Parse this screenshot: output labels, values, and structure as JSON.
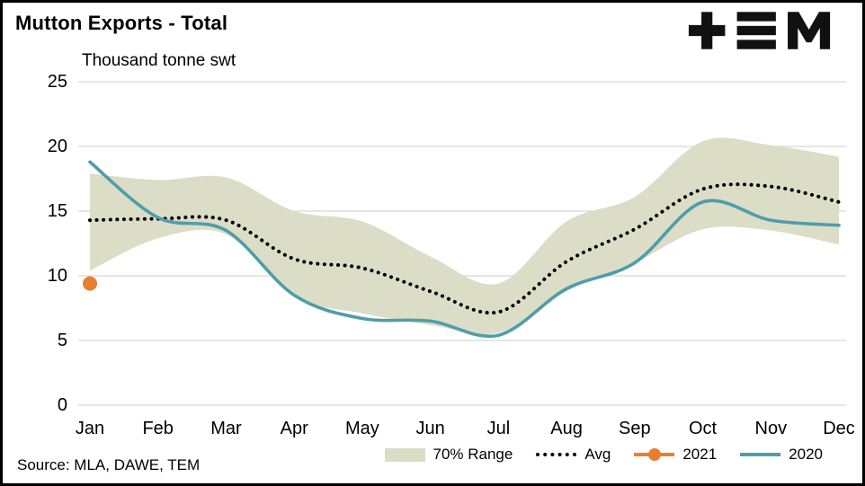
{
  "title": "Mutton Exports - Total",
  "subtitle": "Thousand tonne swt",
  "source": "Source: MLA, DAWE, TEM",
  "logo_text": "TEM",
  "colors": {
    "background": "#ffffff",
    "border": "#000000",
    "grid": "#d8d8d8",
    "text": "#000000",
    "band": "#dcddc6",
    "avg": "#000000",
    "y2021": "#e87f2f",
    "y2020": "#4f9dab"
  },
  "chart_data": {
    "type": "line",
    "title": "Mutton Exports - Total",
    "ylabel": "Thousand tonne swt",
    "xlabel": "",
    "ylim": [
      0,
      25
    ],
    "y_ticks": [
      0,
      5,
      10,
      15,
      20,
      25
    ],
    "grid": "horizontal",
    "legend_position": "bottom",
    "categories": [
      "Jan",
      "Feb",
      "Mar",
      "Apr",
      "May",
      "Jun",
      "Jul",
      "Aug",
      "Sep",
      "Oct",
      "Nov",
      "Dec"
    ],
    "series": [
      {
        "name": "70% Range",
        "type": "band",
        "color": "#dcddc6",
        "upper": [
          17.9,
          17.4,
          17.6,
          15.0,
          14.2,
          11.5,
          9.4,
          14.2,
          16.1,
          20.4,
          20.1,
          19.2
        ],
        "lower": [
          10.4,
          12.9,
          13.2,
          8.4,
          7.1,
          6.2,
          5.6,
          8.8,
          11.0,
          13.6,
          13.5,
          12.4
        ]
      },
      {
        "name": "Avg",
        "type": "dotted-line",
        "color": "#000000",
        "values": [
          14.3,
          14.4,
          14.3,
          11.3,
          10.6,
          8.8,
          7.2,
          11.1,
          13.6,
          16.7,
          16.9,
          15.7
        ]
      },
      {
        "name": "2021",
        "type": "point",
        "color": "#e87f2f",
        "values": [
          9.4,
          null,
          null,
          null,
          null,
          null,
          null,
          null,
          null,
          null,
          null,
          null
        ]
      },
      {
        "name": "2020",
        "type": "line",
        "color": "#4f9dab",
        "values": [
          18.8,
          14.5,
          13.5,
          8.5,
          6.7,
          6.5,
          5.4,
          9.0,
          11.0,
          15.7,
          14.3,
          13.9
        ]
      }
    ]
  }
}
